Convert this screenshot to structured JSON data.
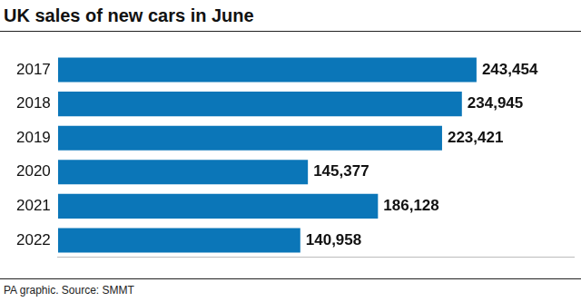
{
  "chart_data": {
    "type": "bar",
    "orientation": "horizontal",
    "title": "UK sales of new cars in June",
    "annotation": "PA graphic. Source: SMMT",
    "categories": [
      "2017",
      "2018",
      "2019",
      "2020",
      "2021",
      "2022"
    ],
    "values": [
      243454,
      234945,
      223421,
      145377,
      186128,
      140958
    ],
    "value_labels": [
      "243,454",
      "234,945",
      "223,421",
      "145,377",
      "186,128",
      "140,958"
    ],
    "color": "#0b76b8",
    "xlim": [
      0,
      300000
    ],
    "grid": false,
    "data_labels": true,
    "tick_labels": "y"
  }
}
